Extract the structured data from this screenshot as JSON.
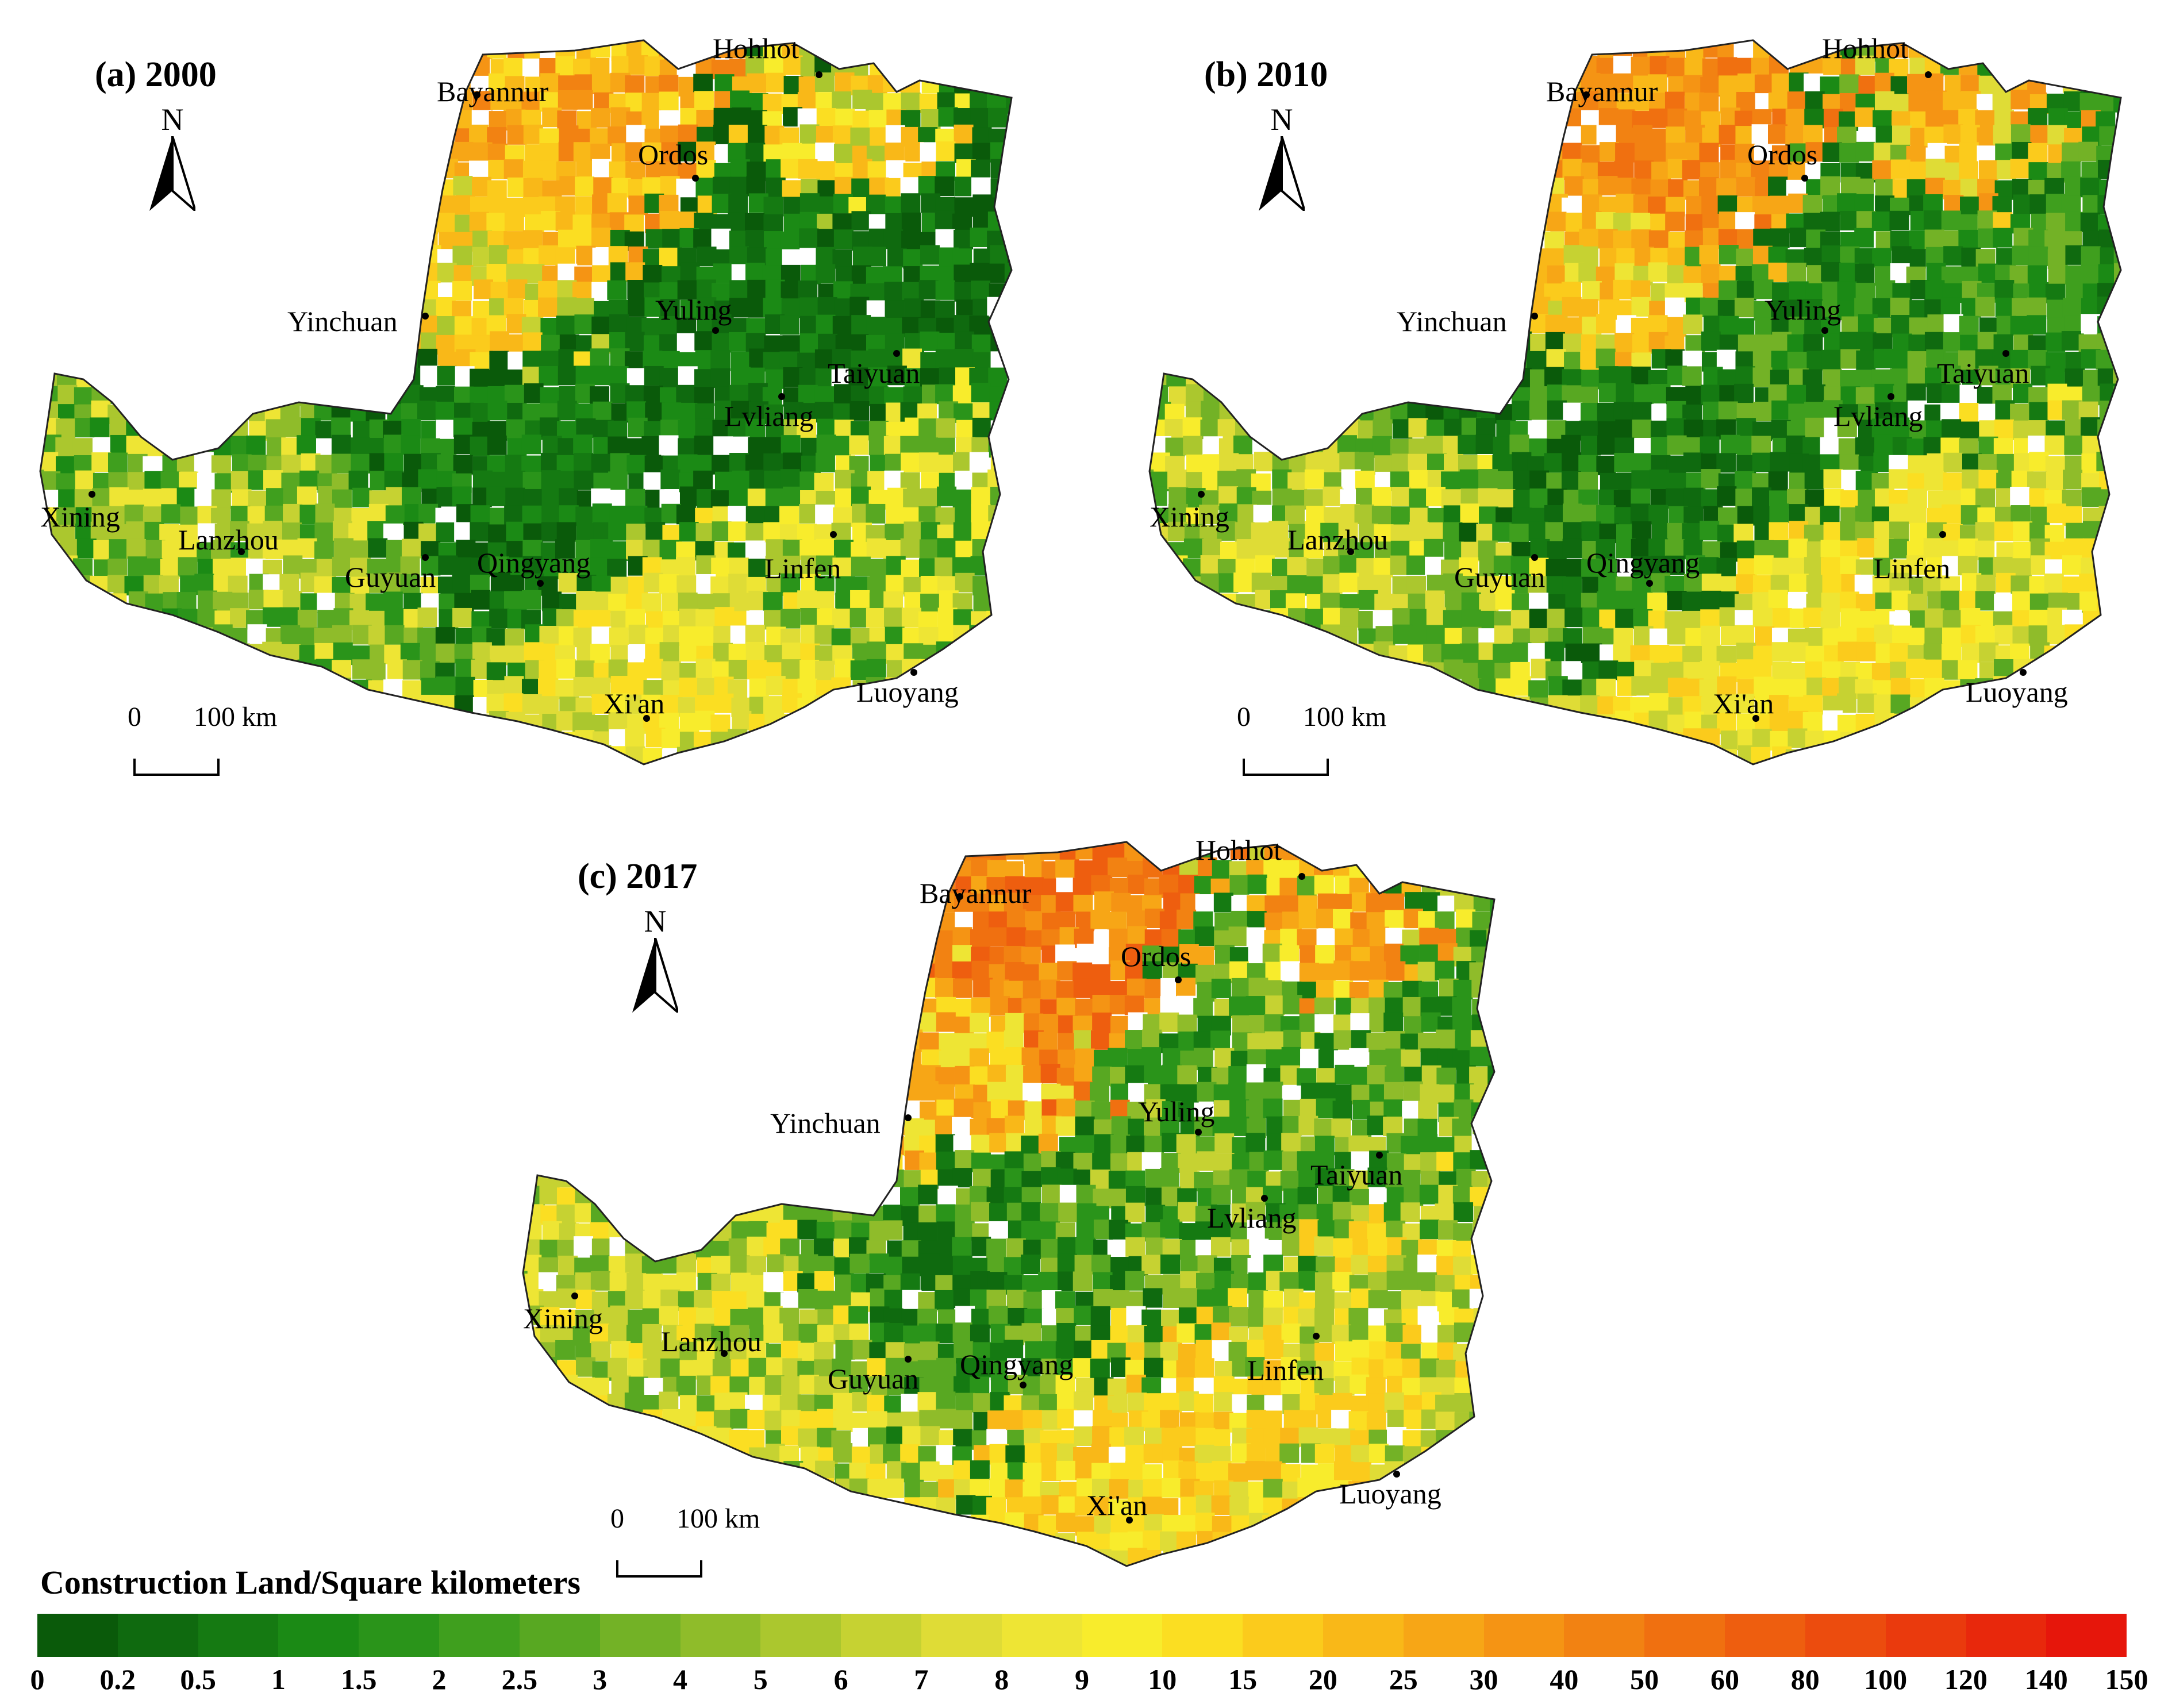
{
  "panels": [
    {
      "label": "(a) 2000",
      "north_letter": "N",
      "scale": {
        "zero": "0",
        "distance": "100 km"
      },
      "cities": [
        "Hohhot",
        "Bayannur",
        "Ordos",
        "Yinchuan",
        "Yuling",
        "Taiyuan",
        "Lvliang",
        "Xining",
        "Lanzhou",
        "Guyuan",
        "Qingyang",
        "Linfen",
        "Xi'an",
        "Luoyang"
      ]
    },
    {
      "label": "(b) 2010",
      "north_letter": "N",
      "scale": {
        "zero": "0",
        "distance": "100 km"
      },
      "cities": [
        "Hohhot",
        "Bayannur",
        "Ordos",
        "Yinchuan",
        "Yuling",
        "Taiyuan",
        "Lvliang",
        "Xining",
        "Lanzhou",
        "Guyuan",
        "Qingyang",
        "Linfen",
        "Xi'an",
        "Luoyang"
      ]
    },
    {
      "label": "(c) 2017",
      "north_letter": "N",
      "scale": {
        "zero": "0",
        "distance": "100 km"
      },
      "cities": [
        "Hohhot",
        "Bayannur",
        "Ordos",
        "Yinchuan",
        "Yuling",
        "Taiyuan",
        "Lvliang",
        "Xining",
        "Lanzhou",
        "Guyuan",
        "Qingyang",
        "Linfen",
        "Xi'an",
        "Luoyang"
      ]
    }
  ],
  "legend": {
    "title": "Construction Land/Square kilometers",
    "ticks": [
      "0",
      "0.2",
      "0.5",
      "1",
      "1.5",
      "2",
      "2.5",
      "3",
      "4",
      "5",
      "6",
      "7",
      "8",
      "9",
      "10",
      "15",
      "20",
      "25",
      "30",
      "40",
      "50",
      "60",
      "80",
      "100",
      "120",
      "140",
      "150"
    ],
    "colors": [
      "#0a5a0a",
      "#0f6a0f",
      "#157a12",
      "#1b8a15",
      "#2a941a",
      "#3f9f1e",
      "#58a822",
      "#73b226",
      "#8fbc2a",
      "#abc72e",
      "#c6d232",
      "#dfdc36",
      "#eee534",
      "#f8ec2c",
      "#fbde22",
      "#fbcb1c",
      "#f9b818",
      "#f7a616",
      "#f59414",
      "#f28212",
      "#f07010",
      "#ee5e0f",
      "#ec4c0e",
      "#ea3a0d",
      "#e8280c",
      "#e6160b"
    ]
  }
}
